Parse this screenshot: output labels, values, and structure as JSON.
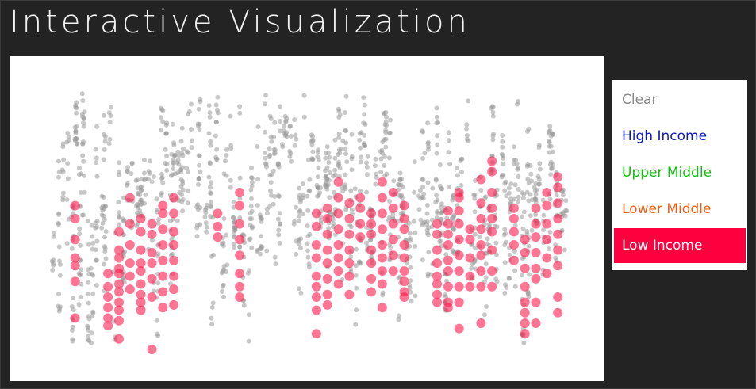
{
  "page": {
    "title": "Interactive Visualization"
  },
  "legend": {
    "items": [
      {
        "label": "Clear",
        "color": "#8a8a8a",
        "active": false
      },
      {
        "label": "High Income",
        "color": "#0b18c8",
        "active": false
      },
      {
        "label": "Upper Middle",
        "color": "#12c012",
        "active": false
      },
      {
        "label": "Lower Middle",
        "color": "#e8621a",
        "active": false
      },
      {
        "label": "Low Income",
        "color": "#ffffff",
        "active": true
      }
    ]
  },
  "colors": {
    "highlight": "#ff1a4d",
    "default_point": "#9a9a9a",
    "active_background": "#ff003f"
  },
  "chart_data": {
    "type": "scatter",
    "title": "",
    "xlabel": "",
    "ylabel": "",
    "xlim": [
      0,
      47
    ],
    "ylim": [
      0,
      100
    ],
    "grid": false,
    "series": [
      {
        "name": "Low Income",
        "highlighted": true,
        "points": [
          [
            2,
            55
          ],
          [
            2,
            50
          ],
          [
            2,
            42
          ],
          [
            2,
            35
          ],
          [
            2,
            32
          ],
          [
            2,
            26
          ],
          [
            2,
            12
          ],
          [
            5,
            29
          ],
          [
            5,
            24
          ],
          [
            5,
            20
          ],
          [
            5,
            16
          ],
          [
            5,
            12
          ],
          [
            5,
            9
          ],
          [
            6,
            45
          ],
          [
            6,
            38
          ],
          [
            6,
            35
          ],
          [
            6,
            31
          ],
          [
            6,
            29
          ],
          [
            6,
            25
          ],
          [
            6,
            22
          ],
          [
            6,
            18
          ],
          [
            6,
            15
          ],
          [
            6,
            11
          ],
          [
            6,
            4
          ],
          [
            7,
            58
          ],
          [
            7,
            48
          ],
          [
            7,
            40
          ],
          [
            7,
            33
          ],
          [
            7,
            28
          ],
          [
            7,
            23
          ],
          [
            8,
            50
          ],
          [
            8,
            45
          ],
          [
            8,
            38
          ],
          [
            8,
            33
          ],
          [
            8,
            30
          ],
          [
            8,
            25
          ],
          [
            8,
            21
          ],
          [
            8,
            18
          ],
          [
            8,
            15
          ],
          [
            9,
            48
          ],
          [
            9,
            44
          ],
          [
            9,
            37
          ],
          [
            9,
            33
          ],
          [
            9,
            27
          ],
          [
            9,
            20
          ],
          [
            9,
            0
          ],
          [
            10,
            55
          ],
          [
            10,
            52
          ],
          [
            10,
            46
          ],
          [
            10,
            40
          ],
          [
            10,
            34
          ],
          [
            10,
            28
          ],
          [
            10,
            22
          ],
          [
            10,
            16
          ],
          [
            11,
            58
          ],
          [
            11,
            52
          ],
          [
            11,
            45
          ],
          [
            11,
            40
          ],
          [
            11,
            34
          ],
          [
            11,
            28
          ],
          [
            11,
            23
          ],
          [
            11,
            17
          ],
          [
            15,
            52
          ],
          [
            15,
            47
          ],
          [
            15,
            43
          ],
          [
            17,
            60
          ],
          [
            17,
            55
          ],
          [
            17,
            48
          ],
          [
            17,
            42
          ],
          [
            17,
            36
          ],
          [
            17,
            29
          ],
          [
            17,
            24
          ],
          [
            17,
            20
          ],
          [
            24,
            52
          ],
          [
            24,
            47
          ],
          [
            24,
            40
          ],
          [
            24,
            35
          ],
          [
            24,
            28
          ],
          [
            24,
            24
          ],
          [
            24,
            20
          ],
          [
            24,
            15
          ],
          [
            24,
            6
          ],
          [
            25,
            54
          ],
          [
            25,
            50
          ],
          [
            25,
            44
          ],
          [
            25,
            38
          ],
          [
            25,
            33
          ],
          [
            25,
            27
          ],
          [
            25,
            21
          ],
          [
            25,
            17
          ],
          [
            26,
            64
          ],
          [
            26,
            58
          ],
          [
            26,
            52
          ],
          [
            26,
            46
          ],
          [
            26,
            40
          ],
          [
            26,
            35
          ],
          [
            26,
            30
          ],
          [
            26,
            25
          ],
          [
            27,
            56
          ],
          [
            27,
            50
          ],
          [
            27,
            44
          ],
          [
            27,
            38
          ],
          [
            27,
            33
          ],
          [
            27,
            28
          ],
          [
            27,
            21
          ],
          [
            28,
            58
          ],
          [
            28,
            54
          ],
          [
            28,
            48
          ],
          [
            28,
            43
          ],
          [
            29,
            52
          ],
          [
            29,
            48
          ],
          [
            29,
            44
          ],
          [
            29,
            38
          ],
          [
            29,
            33
          ],
          [
            29,
            27
          ],
          [
            29,
            22
          ],
          [
            30,
            64
          ],
          [
            30,
            58
          ],
          [
            30,
            52
          ],
          [
            30,
            46
          ],
          [
            30,
            40
          ],
          [
            30,
            35
          ],
          [
            30,
            30
          ],
          [
            30,
            25
          ],
          [
            30,
            16
          ],
          [
            31,
            60
          ],
          [
            31,
            54
          ],
          [
            31,
            48
          ],
          [
            31,
            42
          ],
          [
            31,
            36
          ],
          [
            31,
            30
          ],
          [
            32,
            55
          ],
          [
            32,
            50
          ],
          [
            32,
            46
          ],
          [
            32,
            40
          ],
          [
            32,
            35
          ],
          [
            32,
            30
          ],
          [
            32,
            26
          ],
          [
            32,
            22
          ],
          [
            32,
            20
          ],
          [
            35,
            48
          ],
          [
            35,
            44
          ],
          [
            35,
            38
          ],
          [
            35,
            33
          ],
          [
            35,
            28
          ],
          [
            35,
            25
          ],
          [
            35,
            21
          ],
          [
            35,
            18
          ],
          [
            36,
            53
          ],
          [
            36,
            48
          ],
          [
            36,
            44
          ],
          [
            36,
            40
          ],
          [
            36,
            34
          ],
          [
            36,
            30
          ],
          [
            36,
            24
          ],
          [
            36,
            18
          ],
          [
            36,
            16
          ],
          [
            37,
            60
          ],
          [
            37,
            58
          ],
          [
            37,
            53
          ],
          [
            37,
            48
          ],
          [
            37,
            42
          ],
          [
            37,
            36
          ],
          [
            37,
            30
          ],
          [
            37,
            24
          ],
          [
            37,
            18
          ],
          [
            37,
            8
          ],
          [
            38,
            46
          ],
          [
            38,
            42
          ],
          [
            38,
            35
          ],
          [
            38,
            28
          ],
          [
            38,
            24
          ],
          [
            39,
            65
          ],
          [
            39,
            56
          ],
          [
            39,
            50
          ],
          [
            39,
            46
          ],
          [
            39,
            40
          ],
          [
            39,
            36
          ],
          [
            39,
            30
          ],
          [
            39,
            24
          ],
          [
            39,
            10
          ],
          [
            40,
            72
          ],
          [
            40,
            68
          ],
          [
            40,
            60
          ],
          [
            40,
            54
          ],
          [
            40,
            50
          ],
          [
            40,
            45
          ],
          [
            40,
            38
          ],
          [
            40,
            30
          ],
          [
            40,
            24
          ],
          [
            42,
            54
          ],
          [
            42,
            50
          ],
          [
            42,
            45
          ],
          [
            42,
            40
          ],
          [
            42,
            34
          ],
          [
            43,
            42
          ],
          [
            43,
            37
          ],
          [
            43,
            31
          ],
          [
            43,
            24
          ],
          [
            43,
            18
          ],
          [
            43,
            14
          ],
          [
            43,
            10
          ],
          [
            43,
            6
          ],
          [
            44,
            54
          ],
          [
            44,
            48
          ],
          [
            44,
            43
          ],
          [
            44,
            37
          ],
          [
            44,
            31
          ],
          [
            44,
            27
          ],
          [
            44,
            18
          ],
          [
            44,
            10
          ],
          [
            45,
            60
          ],
          [
            45,
            55
          ],
          [
            45,
            48
          ],
          [
            45,
            42
          ],
          [
            45,
            35
          ],
          [
            45,
            29
          ],
          [
            46,
            66
          ],
          [
            46,
            62
          ],
          [
            46,
            56
          ],
          [
            46,
            50
          ],
          [
            46,
            44
          ],
          [
            46,
            38
          ],
          [
            46,
            32
          ],
          [
            46,
            20
          ],
          [
            46,
            14
          ]
        ]
      }
    ]
  }
}
